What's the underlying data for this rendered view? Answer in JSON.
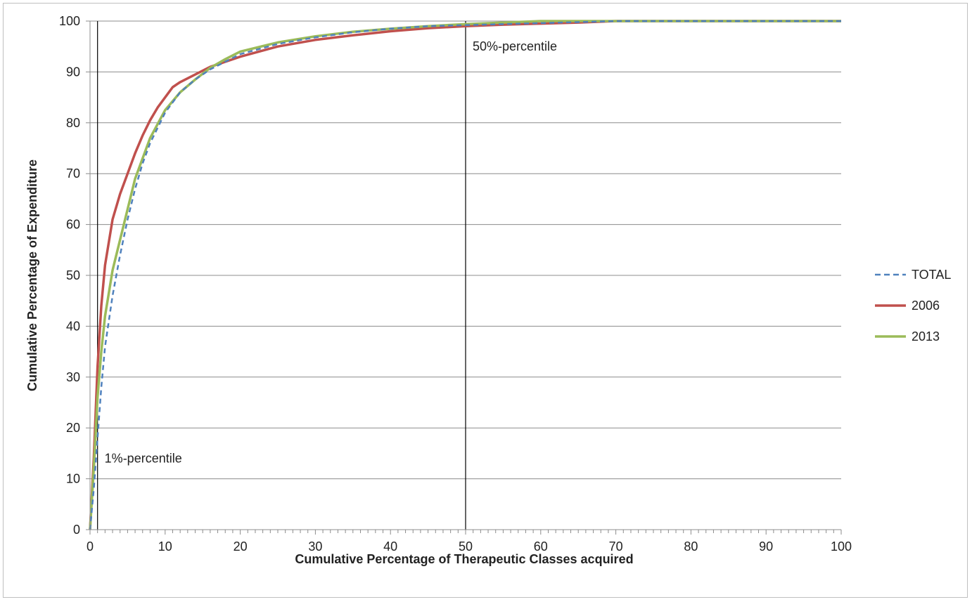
{
  "chart_data": {
    "type": "line",
    "title": "",
    "xlabel": "Cumulative Percentage of Therapeutic Classes acquired",
    "ylabel": "Cumulative Percentage of Expenditure",
    "xlim": [
      0,
      100
    ],
    "ylim": [
      0,
      100
    ],
    "x_ticks": [
      0,
      10,
      20,
      30,
      40,
      50,
      60,
      70,
      80,
      90,
      100
    ],
    "y_ticks": [
      0,
      10,
      20,
      30,
      40,
      50,
      60,
      70,
      80,
      90,
      100
    ],
    "grid": "horizontal",
    "legend_position": "right",
    "series": [
      {
        "name": "TOTAL",
        "color": "#4f81bd",
        "style": "dashed",
        "x": [
          0,
          0.5,
          1,
          1.5,
          2,
          3,
          4,
          5,
          6,
          7,
          8,
          10,
          12,
          14,
          16,
          18,
          20,
          25,
          30,
          35,
          40,
          45,
          50,
          55,
          60,
          65,
          70,
          80,
          90,
          100
        ],
        "y": [
          0,
          8,
          18,
          28,
          36,
          46,
          54,
          61,
          67,
          72,
          76,
          82,
          86,
          88.5,
          90.5,
          92,
          93.5,
          95.5,
          96.8,
          97.8,
          98.5,
          99,
          99.2,
          99.4,
          99.6,
          99.8,
          100,
          100,
          100,
          100
        ]
      },
      {
        "name": "2006",
        "color": "#c0504d",
        "style": "solid",
        "x": [
          0,
          0.5,
          1,
          1.5,
          2,
          3,
          4,
          5,
          6,
          7,
          8,
          9,
          11,
          12,
          14,
          16,
          18,
          20,
          25,
          30,
          35,
          40,
          45,
          50,
          55,
          60,
          65,
          70,
          80,
          90,
          100
        ],
        "y": [
          0,
          14,
          32,
          44,
          52,
          61,
          66,
          70,
          74,
          77.5,
          80.5,
          83,
          87,
          88,
          89.5,
          91,
          92,
          93,
          95,
          96.3,
          97.2,
          98,
          98.6,
          99,
          99.3,
          99.5,
          99.7,
          100,
          100,
          100,
          100
        ]
      },
      {
        "name": "2013",
        "color": "#9bbb59",
        "style": "solid",
        "x": [
          0,
          0.5,
          1,
          1.5,
          2,
          3,
          4,
          5,
          6,
          7,
          8,
          10,
          12,
          14,
          16,
          18,
          20,
          25,
          30,
          35,
          40,
          45,
          50,
          55,
          60,
          70,
          80,
          90,
          100
        ],
        "y": [
          0,
          12,
          26,
          35,
          42,
          51,
          57,
          63,
          69,
          73,
          77,
          82.5,
          86,
          88.5,
          90.8,
          92.5,
          94,
          95.8,
          97,
          97.9,
          98.5,
          99,
          99.4,
          99.7,
          100,
          100,
          100,
          100,
          100
        ]
      }
    ],
    "annotations": [
      {
        "x": 1,
        "label": "1%-percentile",
        "label_y": 14
      },
      {
        "x": 50,
        "label": "50%-percentile",
        "label_y": 95
      }
    ]
  }
}
